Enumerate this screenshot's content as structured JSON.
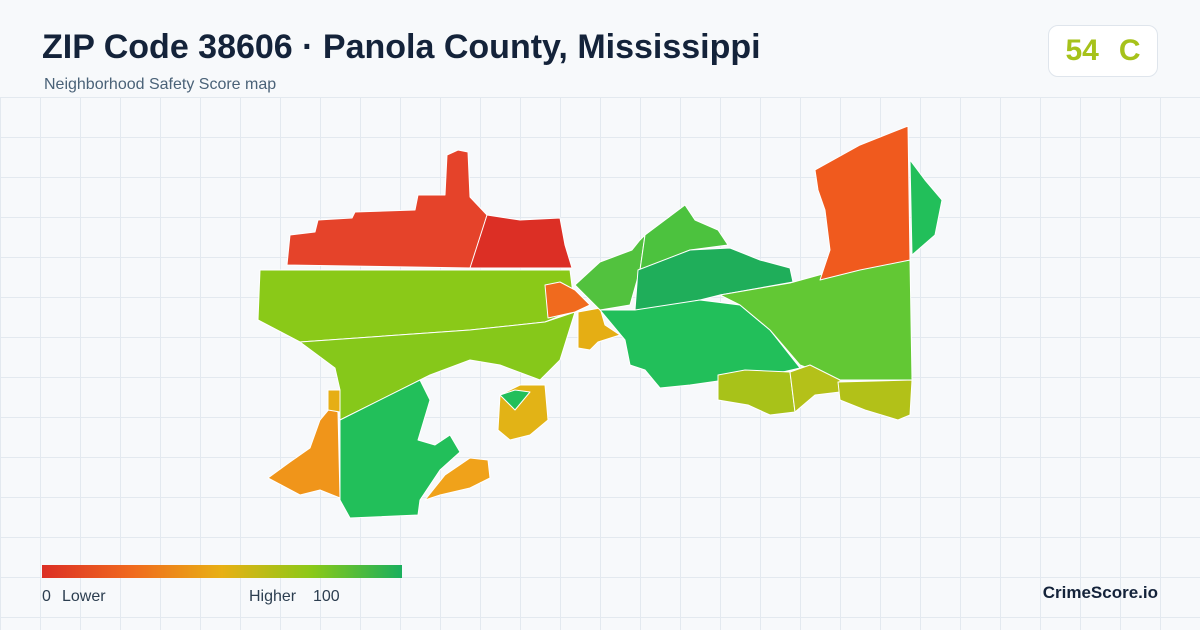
{
  "header": {
    "title": "ZIP Code 38606 · Panola County, Mississippi",
    "subtitle": "Neighborhood Safety Score map"
  },
  "score": {
    "value": 54,
    "grade": "C"
  },
  "legend": {
    "min": 0,
    "min_label": "Lower",
    "max_label": "Higher",
    "max": 100
  },
  "brand": "CrimeScore.io"
}
